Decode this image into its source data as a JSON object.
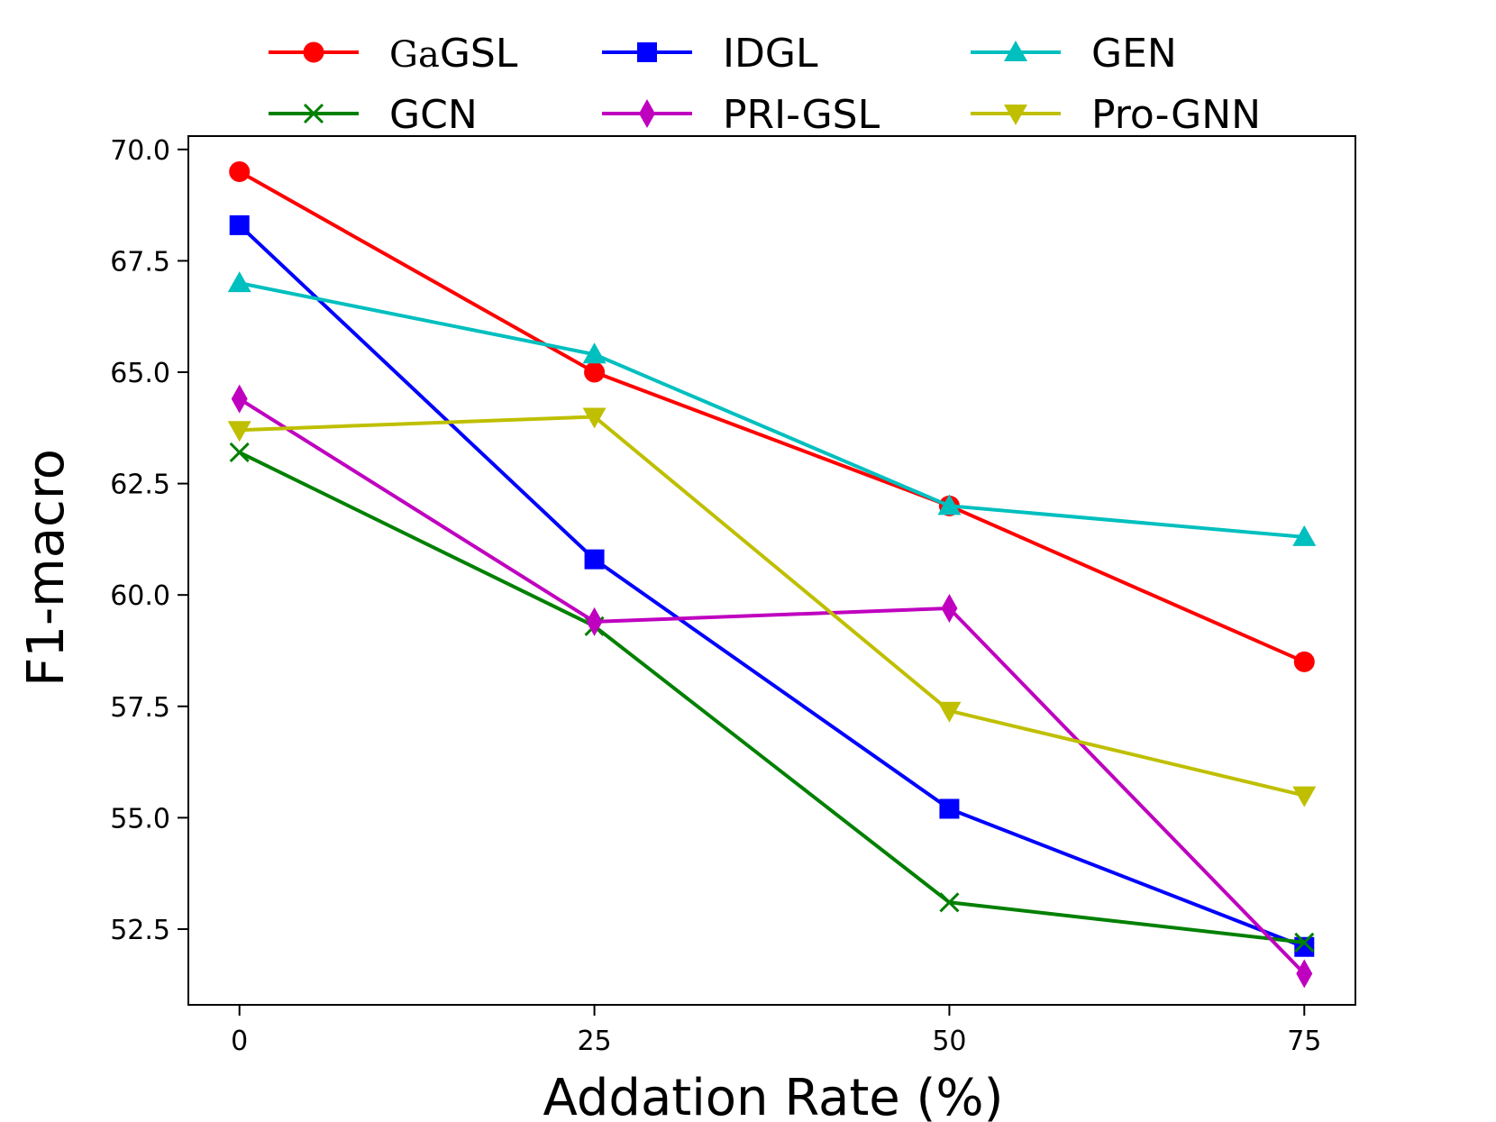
{
  "chart_data": {
    "type": "line",
    "title": "",
    "xlabel": "Addation Rate (%)",
    "ylabel": "F1-macro",
    "x": [
      0,
      25,
      50,
      75
    ],
    "x_tick_labels": [
      "0",
      "25",
      "50",
      "75"
    ],
    "xlim": [
      -3.6,
      78.6
    ],
    "ylim": [
      50.8,
      70.3
    ],
    "y_ticks": [
      52.5,
      55.0,
      57.5,
      60.0,
      62.5,
      65.0,
      67.5,
      70.0
    ],
    "y_tick_labels": [
      "52.5",
      "55.0",
      "57.5",
      "60.0",
      "62.5",
      "65.0",
      "67.5",
      "70.0"
    ],
    "grid": false,
    "legend_position": "top, outside plot, 3 columns",
    "series": [
      {
        "name": "GaGSL",
        "name_prefix": "Ga",
        "name_suffix": "GSL",
        "color": "#ff0000",
        "marker": "circle",
        "values": [
          69.5,
          65.0,
          62.0,
          58.5
        ]
      },
      {
        "name": "IDGL",
        "color": "#0000ff",
        "marker": "square",
        "values": [
          68.3,
          60.8,
          55.2,
          52.1
        ]
      },
      {
        "name": "GEN",
        "color": "#00bfbf",
        "marker": "triangle-up",
        "values": [
          67.0,
          65.4,
          62.0,
          61.3
        ]
      },
      {
        "name": "GCN",
        "color": "#008000",
        "marker": "x",
        "values": [
          63.2,
          59.3,
          53.1,
          52.2
        ]
      },
      {
        "name": "PRI-GSL",
        "color": "#bf00bf",
        "marker": "diamond",
        "values": [
          64.4,
          59.4,
          59.7,
          51.5
        ]
      },
      {
        "name": "Pro-GNN",
        "color": "#bfbf00",
        "marker": "triangle-down",
        "values": [
          63.7,
          64.0,
          57.4,
          55.5
        ]
      }
    ]
  }
}
